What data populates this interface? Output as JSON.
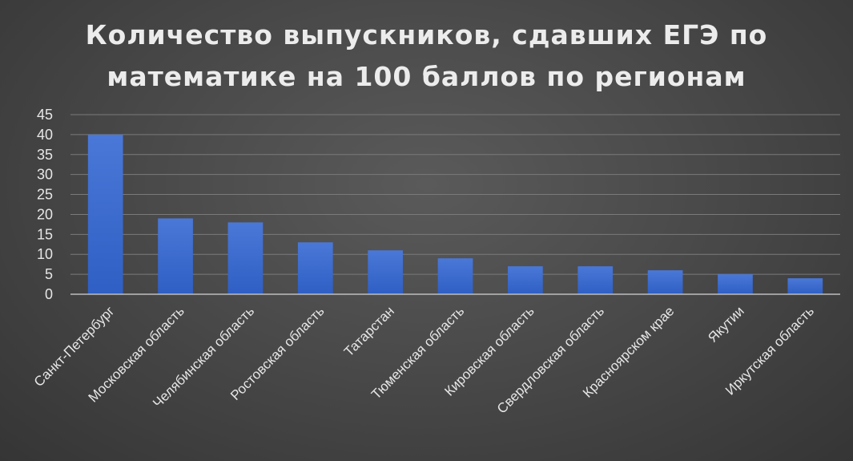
{
  "chart_data": {
    "type": "bar",
    "title_lines": [
      "Количество выпускников, сдавших ЕГЭ по",
      "математике на 100 баллов по регионам"
    ],
    "categories": [
      "Санкт-Петербург",
      "Московская область",
      "Челябинская область",
      "Ростовская область",
      "Татарстан",
      "Тюменская область",
      "Кировская область",
      "Свердловская область",
      "Красноярском крае",
      "Якутии",
      "Иркутская область"
    ],
    "values": [
      40,
      19,
      18,
      13,
      11,
      9,
      7,
      7,
      6,
      5,
      4
    ],
    "ylim": [
      0,
      45
    ],
    "yticks": [
      0,
      5,
      10,
      15,
      20,
      25,
      30,
      35,
      40,
      45
    ],
    "xlabel": "",
    "ylabel": "",
    "grid": true,
    "legend": "none",
    "colors": {
      "bar_top": "#4a78d8",
      "bar_bottom": "#2f5fc4",
      "text": "#e6e6e6"
    }
  }
}
